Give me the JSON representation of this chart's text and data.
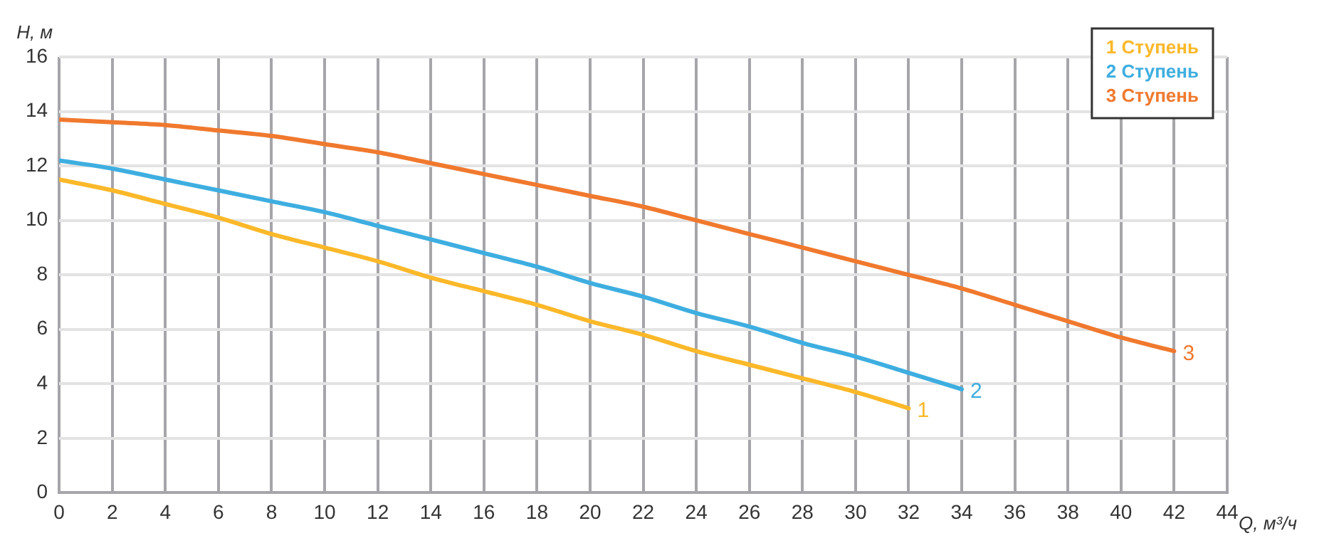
{
  "chart_data": {
    "type": "line",
    "xlabel": "Q, м³/ч",
    "ylabel": "H, м",
    "xlim": [
      0,
      44
    ],
    "xticks": [
      0,
      2,
      4,
      6,
      8,
      10,
      12,
      14,
      16,
      18,
      20,
      22,
      24,
      26,
      28,
      30,
      32,
      34,
      36,
      38,
      40,
      42,
      44
    ],
    "ylim": [
      0,
      16
    ],
    "yticks": [
      0,
      2,
      4,
      6,
      8,
      10,
      12,
      14,
      16
    ],
    "grid": true,
    "legend": "top right",
    "marker": "none",
    "line_style": "solid",
    "series": [
      {
        "name": "1 Ступень",
        "color": "#fbb829",
        "x": [
          0,
          2,
          4,
          6,
          8,
          10,
          12,
          14,
          16,
          18,
          20,
          22,
          24,
          26,
          28,
          30,
          32
        ],
        "values": [
          11.5,
          11.1,
          10.6,
          10.1,
          9.5,
          9.0,
          8.5,
          7.9,
          7.4,
          6.9,
          6.3,
          5.8,
          5.2,
          4.7,
          4.2,
          3.7,
          3.1
        ]
      },
      {
        "name": "2 Ступень",
        "color": "#3eaee0",
        "x": [
          0,
          2,
          4,
          6,
          8,
          10,
          12,
          14,
          16,
          18,
          20,
          22,
          24,
          26,
          28,
          30,
          32,
          34
        ],
        "values": [
          12.2,
          11.9,
          11.5,
          11.1,
          10.7,
          10.3,
          9.8,
          9.3,
          8.8,
          8.3,
          7.7,
          7.2,
          6.6,
          6.1,
          5.5,
          5.0,
          4.4,
          3.8
        ]
      },
      {
        "name": "3 Ступень",
        "color": "#f0792e",
        "x": [
          0,
          2,
          4,
          6,
          8,
          10,
          12,
          14,
          16,
          18,
          20,
          22,
          24,
          26,
          28,
          30,
          32,
          34,
          36,
          38,
          40,
          42
        ],
        "values": [
          13.7,
          13.6,
          13.5,
          13.3,
          13.1,
          12.8,
          12.5,
          12.1,
          11.7,
          11.3,
          10.9,
          10.5,
          10.0,
          9.5,
          9.0,
          8.5,
          8.0,
          7.5,
          6.9,
          6.3,
          5.7,
          5.2
        ]
      }
    ],
    "annotations": [
      {
        "text": "1",
        "x": 32,
        "y": 3.1
      },
      {
        "text": "2",
        "x": 34,
        "y": 3.8
      },
      {
        "text": "3",
        "x": 42,
        "y": 5.2
      }
    ]
  }
}
